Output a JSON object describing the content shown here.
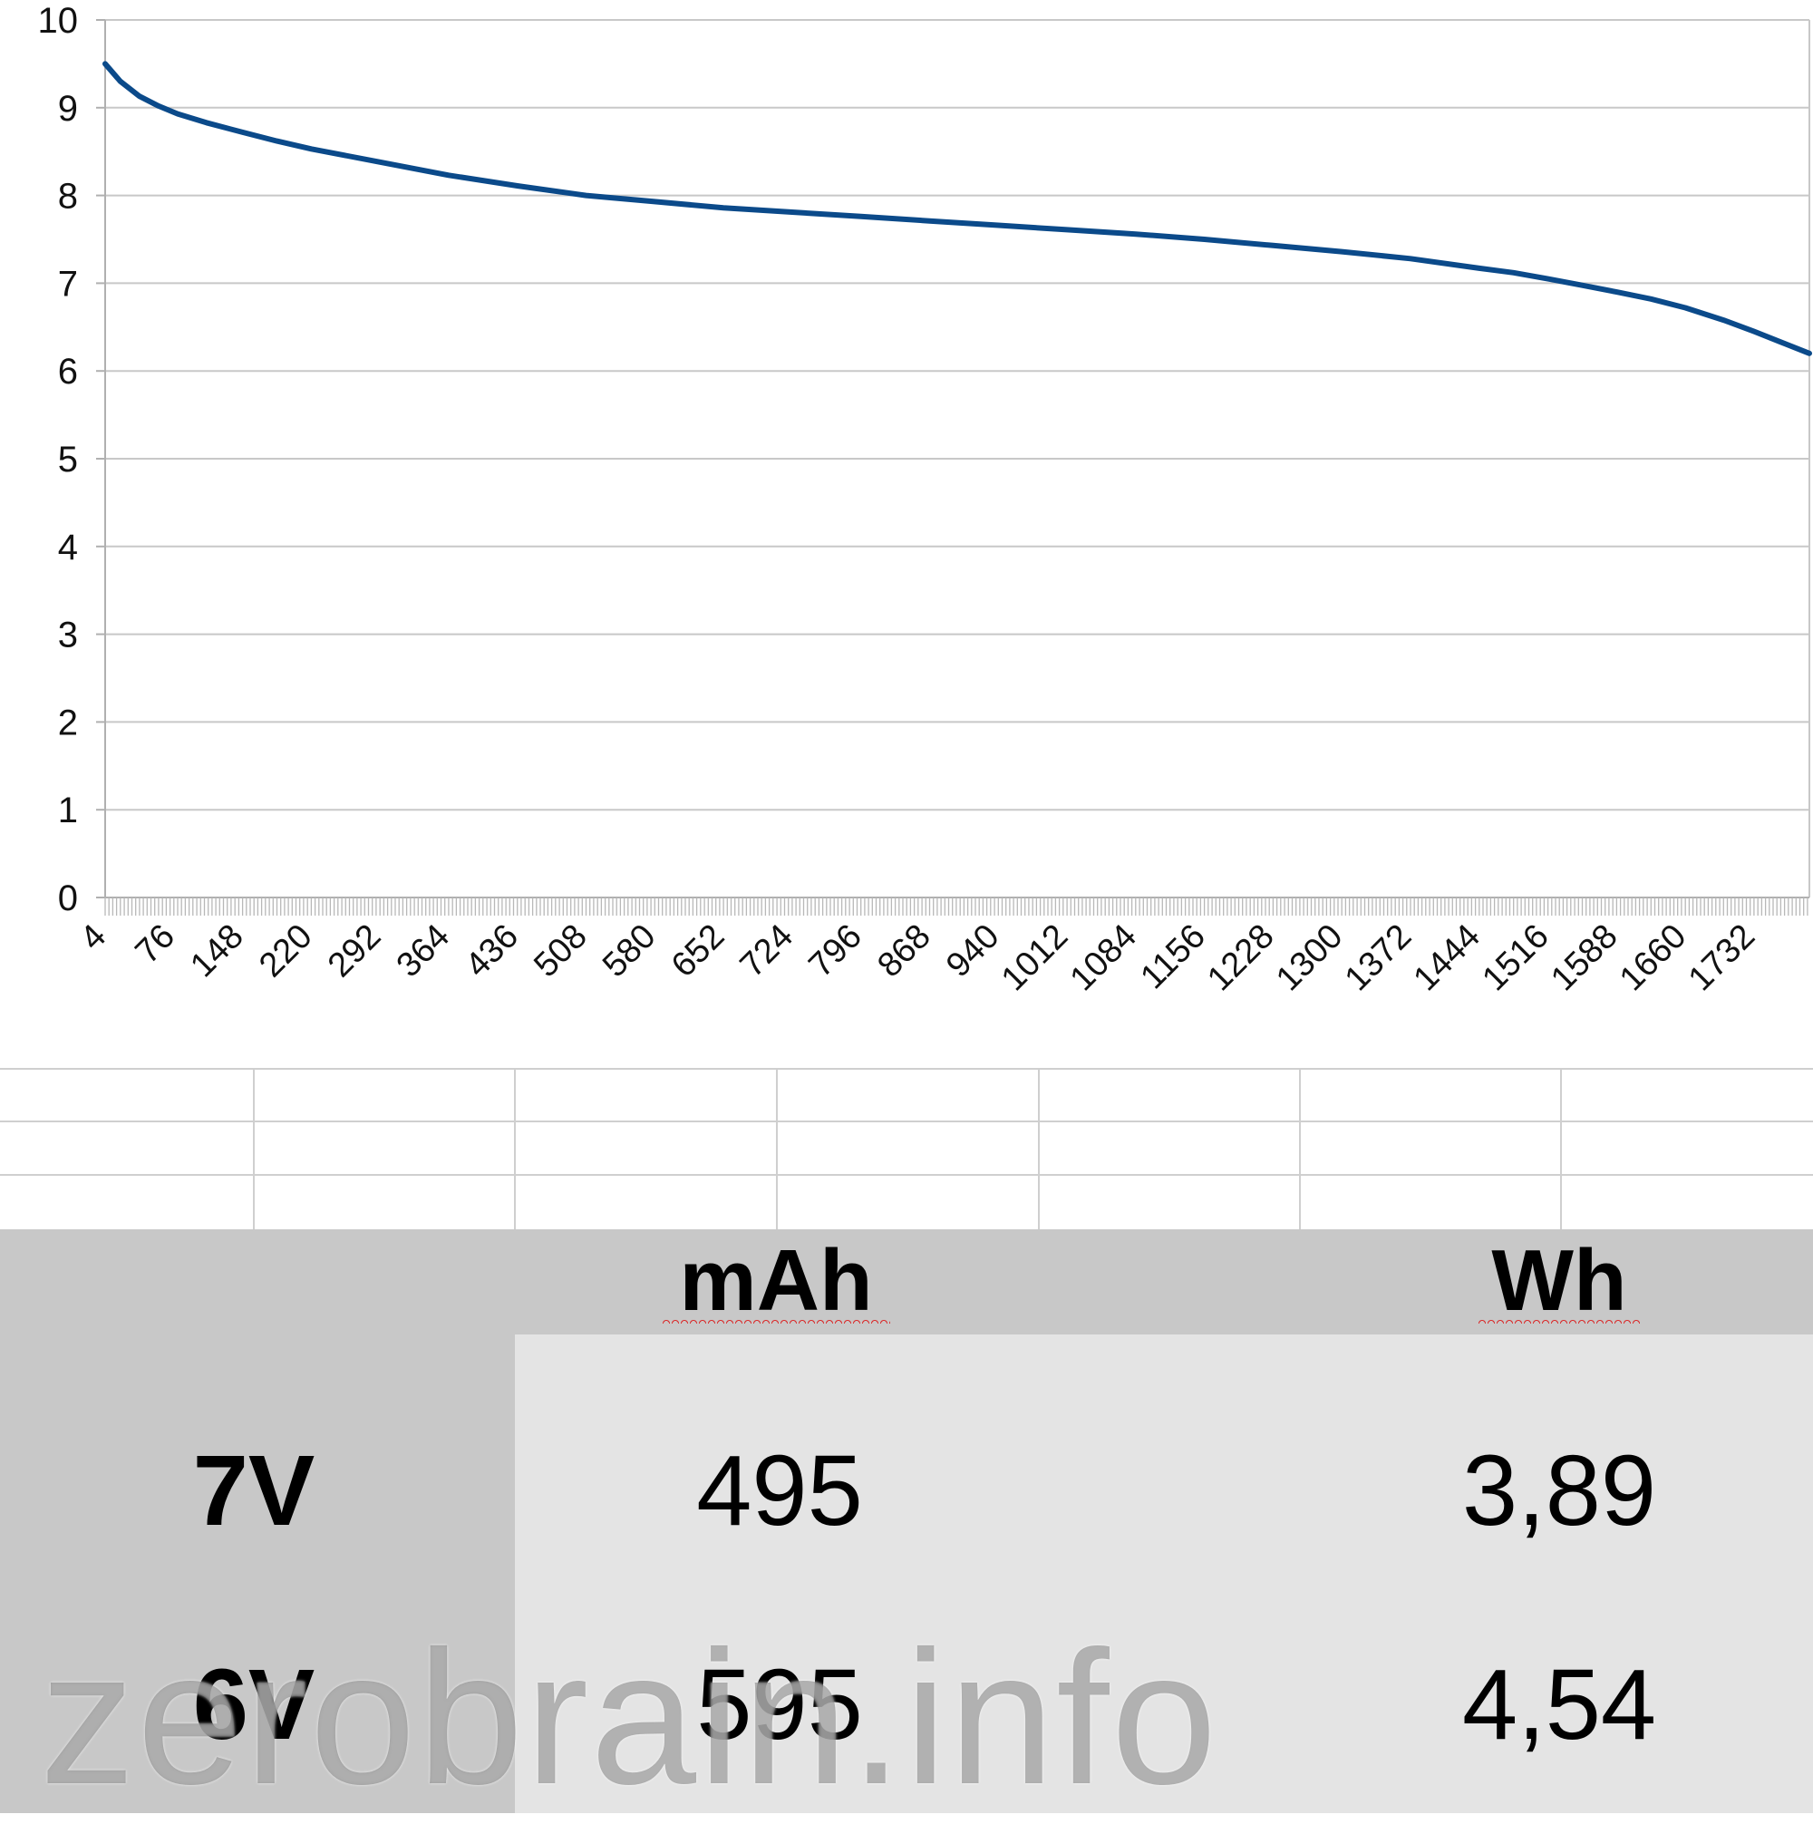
{
  "chart_data": {
    "type": "line",
    "title": "",
    "xlabel": "",
    "ylabel": "",
    "ylim": [
      0,
      10
    ],
    "xlim": [
      4,
      1790
    ],
    "grid": true,
    "legend": "none",
    "y_ticks": [
      "0",
      "1",
      "2",
      "3",
      "4",
      "5",
      "6",
      "7",
      "8",
      "9",
      "10"
    ],
    "x_ticks": [
      "4",
      "76",
      "148",
      "220",
      "292",
      "364",
      "436",
      "508",
      "580",
      "652",
      "724",
      "796",
      "868",
      "940",
      "1012",
      "1084",
      "1156",
      "1228",
      "1300",
      "1372",
      "1444",
      "1516",
      "1588",
      "1660",
      "1732"
    ],
    "series": [
      {
        "color": "#0b4a8a",
        "x": [
          4,
          20,
          40,
          60,
          80,
          110,
          148,
          184,
          220,
          292,
          364,
          436,
          508,
          580,
          652,
          724,
          796,
          868,
          940,
          1012,
          1084,
          1156,
          1228,
          1300,
          1372,
          1444,
          1480,
          1516,
          1550,
          1588,
          1624,
          1660,
          1700,
          1732,
          1760,
          1790
        ],
        "y": [
          9.5,
          9.3,
          9.13,
          9.02,
          8.93,
          8.83,
          8.72,
          8.62,
          8.53,
          8.38,
          8.23,
          8.11,
          8.0,
          7.93,
          7.86,
          7.81,
          7.76,
          7.71,
          7.66,
          7.61,
          7.56,
          7.5,
          7.43,
          7.36,
          7.28,
          7.17,
          7.12,
          7.05,
          6.98,
          6.9,
          6.82,
          6.72,
          6.58,
          6.45,
          6.33,
          6.2
        ]
      }
    ]
  },
  "summary": {
    "header_mah": "mAh",
    "header_wh": "Wh",
    "rows": [
      {
        "label": "7V",
        "mah": "495",
        "wh": "3,89"
      },
      {
        "label": "6V",
        "mah": "595",
        "wh": "4,54"
      }
    ]
  },
  "watermark": "zerobrain.info",
  "colors": {
    "line": "#0b4a8a",
    "grid": "#c8c8c8",
    "header_bg": "#c8c8c8",
    "value_bg": "#e4e4e4",
    "spellcheck": "#d93030"
  }
}
